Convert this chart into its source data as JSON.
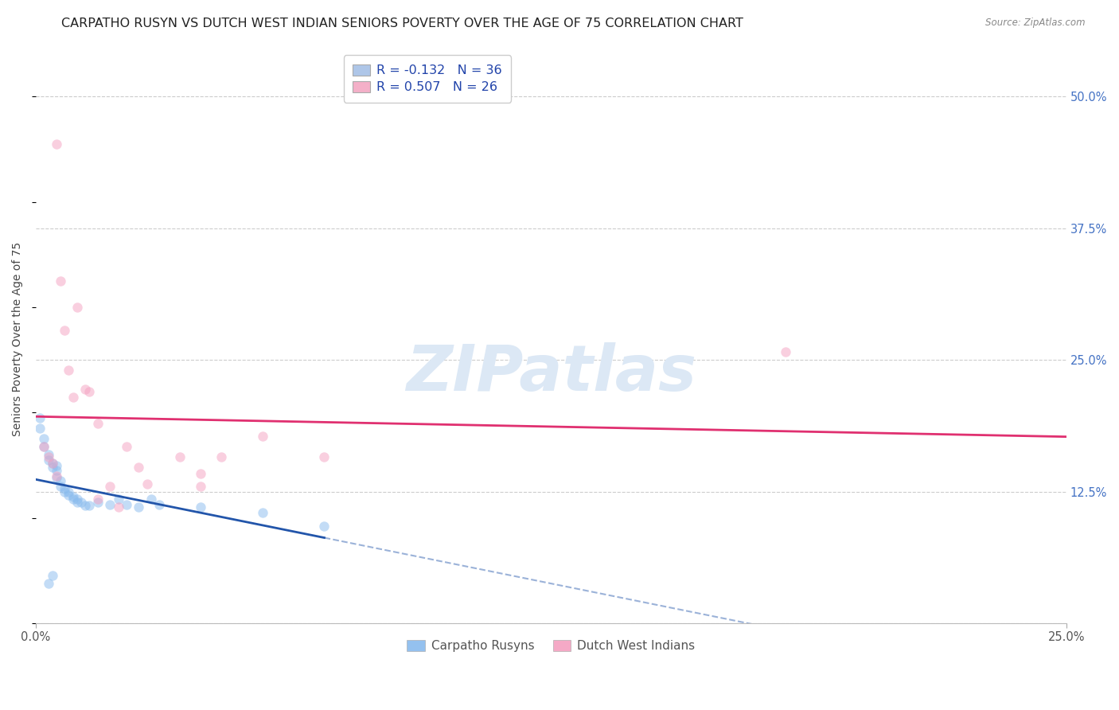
{
  "title": "CARPATHO RUSYN VS DUTCH WEST INDIAN SENIORS POVERTY OVER THE AGE OF 75 CORRELATION CHART",
  "source": "Source: ZipAtlas.com",
  "ylabel": "Seniors Poverty Over the Age of 75",
  "xlim": [
    0.0,
    0.25
  ],
  "ylim": [
    0.0,
    0.54
  ],
  "yticks": [
    0.0,
    0.125,
    0.25,
    0.375,
    0.5
  ],
  "ytick_labels": [
    "0.0%",
    "12.5%",
    "25.0%",
    "37.5%",
    "50.0%"
  ],
  "xtick_labels": [
    "0.0%",
    "25.0%"
  ],
  "xtick_positions": [
    0.0,
    0.25
  ],
  "background_color": "#ffffff",
  "grid_color": "#cccccc",
  "watermark_text": "ZIPatlas",
  "watermark_color": "#dce8f5",
  "legend_entries": [
    {
      "label_r": "R = -0.132",
      "label_n": "N = 36",
      "color_box": "#aec6e8"
    },
    {
      "label_r": "R = 0.507",
      "label_n": "N = 26",
      "color_box": "#f4b0c8"
    }
  ],
  "legend_labels_bottom": [
    "Carpatho Rusyns",
    "Dutch West Indians"
  ],
  "blue_scatter": [
    [
      0.001,
      0.195
    ],
    [
      0.001,
      0.185
    ],
    [
      0.002,
      0.175
    ],
    [
      0.002,
      0.168
    ],
    [
      0.003,
      0.16
    ],
    [
      0.003,
      0.155
    ],
    [
      0.004,
      0.152
    ],
    [
      0.004,
      0.148
    ],
    [
      0.005,
      0.15
    ],
    [
      0.005,
      0.145
    ],
    [
      0.005,
      0.138
    ],
    [
      0.006,
      0.135
    ],
    [
      0.006,
      0.13
    ],
    [
      0.007,
      0.128
    ],
    [
      0.007,
      0.125
    ],
    [
      0.008,
      0.125
    ],
    [
      0.008,
      0.122
    ],
    [
      0.009,
      0.12
    ],
    [
      0.009,
      0.118
    ],
    [
      0.01,
      0.118
    ],
    [
      0.01,
      0.115
    ],
    [
      0.011,
      0.115
    ],
    [
      0.012,
      0.112
    ],
    [
      0.013,
      0.112
    ],
    [
      0.015,
      0.115
    ],
    [
      0.018,
      0.113
    ],
    [
      0.02,
      0.118
    ],
    [
      0.022,
      0.113
    ],
    [
      0.025,
      0.11
    ],
    [
      0.028,
      0.118
    ],
    [
      0.03,
      0.113
    ],
    [
      0.04,
      0.11
    ],
    [
      0.055,
      0.105
    ],
    [
      0.07,
      0.092
    ],
    [
      0.003,
      0.038
    ],
    [
      0.004,
      0.045
    ]
  ],
  "pink_scatter": [
    [
      0.002,
      0.168
    ],
    [
      0.003,
      0.158
    ],
    [
      0.004,
      0.152
    ],
    [
      0.005,
      0.14
    ],
    [
      0.005,
      0.455
    ],
    [
      0.006,
      0.325
    ],
    [
      0.007,
      0.278
    ],
    [
      0.008,
      0.24
    ],
    [
      0.009,
      0.215
    ],
    [
      0.01,
      0.3
    ],
    [
      0.012,
      0.222
    ],
    [
      0.013,
      0.22
    ],
    [
      0.015,
      0.19
    ],
    [
      0.015,
      0.118
    ],
    [
      0.018,
      0.13
    ],
    [
      0.02,
      0.11
    ],
    [
      0.022,
      0.168
    ],
    [
      0.025,
      0.148
    ],
    [
      0.027,
      0.132
    ],
    [
      0.035,
      0.158
    ],
    [
      0.04,
      0.142
    ],
    [
      0.04,
      0.13
    ],
    [
      0.045,
      0.158
    ],
    [
      0.055,
      0.178
    ],
    [
      0.07,
      0.158
    ],
    [
      0.182,
      0.258
    ]
  ],
  "blue_line_color": "#2255aa",
  "pink_line_color": "#e03070",
  "blue_dot_color": "#88bbee",
  "pink_dot_color": "#f4a0c0",
  "dot_size": 80,
  "dot_alpha": 0.5,
  "fig_width": 14.06,
  "fig_height": 8.92,
  "title_fontsize": 11.5,
  "axis_label_fontsize": 10,
  "tick_fontsize": 10.5,
  "right_ytick_color": "#4472c4",
  "source_color": "#888888"
}
